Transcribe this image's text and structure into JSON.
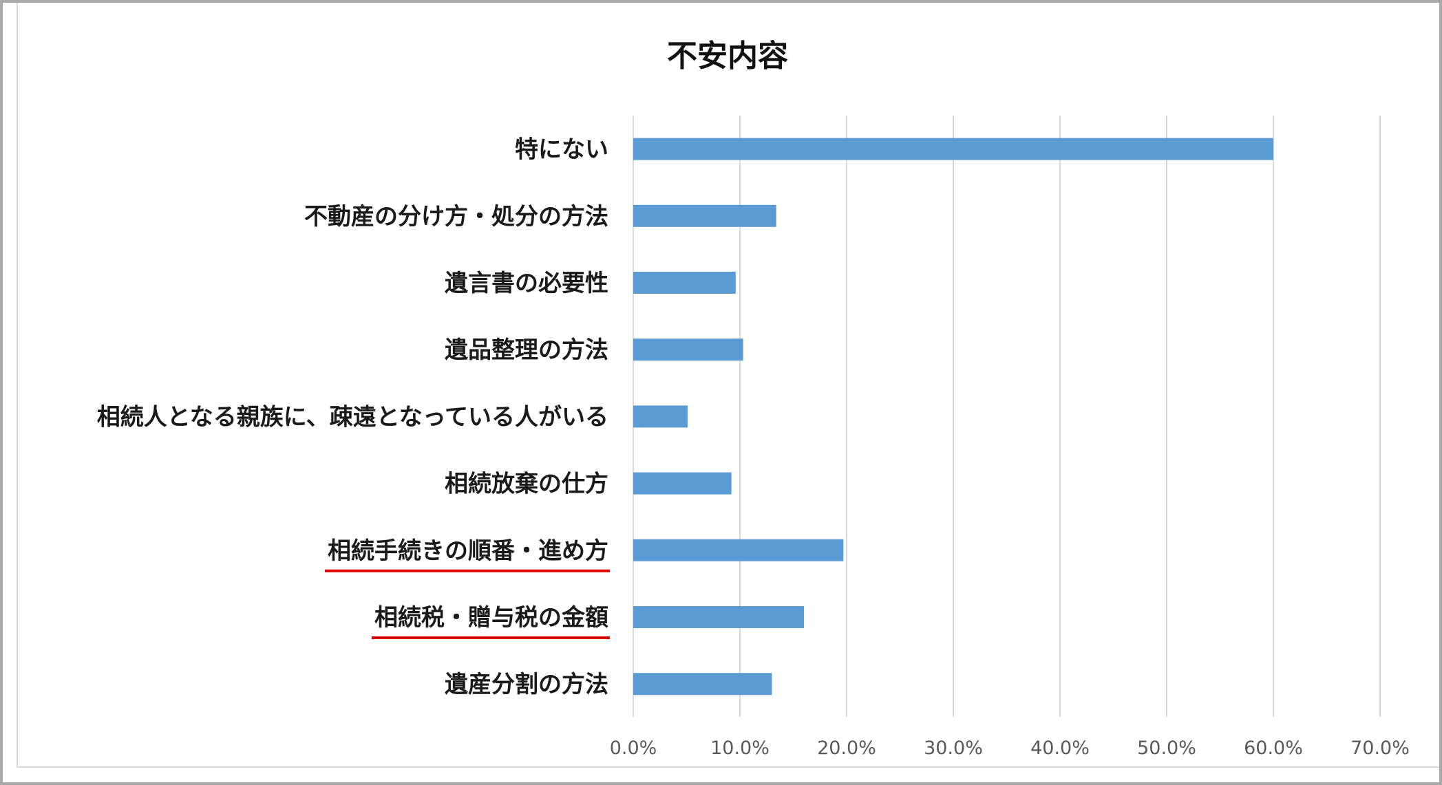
{
  "chart_data": {
    "type": "bar",
    "orientation": "horizontal",
    "title": "不安内容",
    "categories": [
      "特にない",
      "不動産の分け方・処分の方法",
      "遺言書の必要性",
      "遺品整理の方法",
      "相続人となる親族に、疎遠となっている人がいる",
      "相続放棄の仕方",
      "相続手続きの順番・進め方",
      "相続税・贈与税の金額",
      "遺産分割の方法"
    ],
    "values": [
      60.0,
      13.4,
      9.6,
      10.3,
      5.1,
      9.2,
      19.7,
      16.0,
      13.0
    ],
    "underlined_categories": [
      "相続手続きの順番・進め方",
      "相続税・贈与税の金額"
    ],
    "xlim": [
      0,
      70
    ],
    "xticks": [
      0,
      10,
      20,
      30,
      40,
      50,
      60,
      70
    ],
    "tick_labels": [
      "0.0%",
      "10.0%",
      "20.0%",
      "30.0%",
      "40.0%",
      "50.0%",
      "60.0%",
      "70.0%"
    ],
    "bar_color": "#5b9bd5",
    "grid": true,
    "legend": "none"
  }
}
